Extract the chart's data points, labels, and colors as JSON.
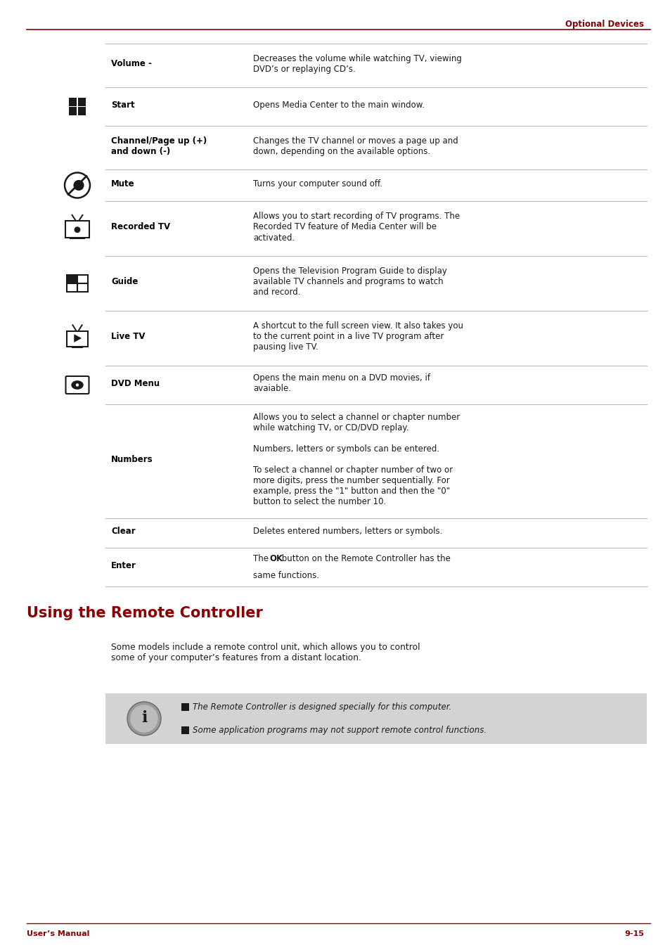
{
  "page_bg": "#ffffff",
  "header_text": "Optional Devices",
  "header_color": "#8b0000",
  "header_line_color": "#8b0000",
  "footer_left": "User’s Manual",
  "footer_right": "9-15",
  "footer_color": "#8b0000",
  "footer_line_color": "#8b0000",
  "section_title": "Using the Remote Controller",
  "section_title_color": "#8b0000",
  "section_body": "Some models include a remote control unit, which allows you to control\nsome of your computer’s features from a distant location.",
  "note_bg": "#d3d3d3",
  "note_lines": [
    "The Remote Controller is designed specially for this computer.",
    "Some application programs may not support remote control functions."
  ],
  "text_color": "#1a1a1a",
  "bold_color": "#000000",
  "line_color": "#bbbbbb",
  "table_rows": [
    {
      "icon": null,
      "label": "Volume -",
      "desc": "Decreases the volume while watching TV, viewing\nDVD’s or replaying CD’s."
    },
    {
      "icon": "start",
      "label": "Start",
      "desc": "Opens Media Center to the main window."
    },
    {
      "icon": null,
      "label": "Channel/Page up (+)\nand down (-)",
      "desc": "Changes the TV channel or moves a page up and\ndown, depending on the available options."
    },
    {
      "icon": "mute",
      "label": "Mute",
      "desc": "Turns your computer sound off."
    },
    {
      "icon": "recordedtv",
      "label": "Recorded TV",
      "desc": "Allows you to start recording of TV programs. The\nRecorded TV feature of Media Center will be\nactivated."
    },
    {
      "icon": "guide",
      "label": "Guide",
      "desc": "Opens the Television Program Guide to display\navailable TV channels and programs to watch\nand record."
    },
    {
      "icon": "livetv",
      "label": "Live TV",
      "desc": "A shortcut to the full screen view. It also takes you\nto the current point in a live TV program after\npausing live TV."
    },
    {
      "icon": "dvdmenu",
      "label": "DVD Menu",
      "desc": "Opens the main menu on a DVD movies, if\navaiable."
    },
    {
      "icon": null,
      "label": "Numbers",
      "desc": "Allows you to select a channel or chapter number\nwhile watching TV, or CD/DVD replay.\n\nNumbers, letters or symbols can be entered.\n\nTo select a channel or chapter number of two or\nmore digits, press the number sequentially. For\nexample, press the \"1\" button and then the \"0\"\nbutton to select the number 10."
    },
    {
      "icon": null,
      "label": "Clear",
      "desc": "Deletes entered numbers, letters or symbols."
    },
    {
      "icon": null,
      "label": "Enter",
      "desc_parts": [
        {
          "text": "The ",
          "bold": false
        },
        {
          "text": "OK",
          "bold": true
        },
        {
          "text": " button on the Remote Controller has the\nsame functions.",
          "bold": false
        }
      ]
    }
  ]
}
